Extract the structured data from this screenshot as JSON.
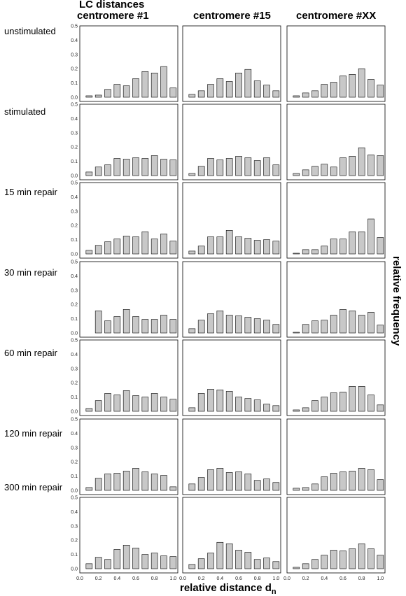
{
  "figure": {
    "header_top": "LC distances",
    "columns": [
      "centromere #1",
      "centromere #15",
      "centromere #XX"
    ],
    "rows": [
      "unstimulated",
      "stimulated",
      "15 min repair",
      "30 min repair",
      "60 min repair",
      "120 min repair",
      "300 min repair"
    ],
    "xlabel_main": "relative distance d",
    "xlabel_sub": "n",
    "ylabel": "relative frequency",
    "bar_color": "#c8c8c8"
  },
  "chart_data": {
    "type": "bar",
    "x": [
      0.1,
      0.2,
      0.3,
      0.4,
      0.5,
      0.6,
      0.7,
      0.8,
      0.9,
      1.0
    ],
    "xlim": [
      0.0,
      1.05
    ],
    "ylim": [
      0,
      0.5
    ],
    "x_ticks": [
      "0.0",
      "0.2",
      "0.4",
      "0.6",
      "0.8",
      "1.0"
    ],
    "y_ticks": [
      "0.0",
      "0.1",
      "0.2",
      "0.3",
      "0.4",
      "0.5"
    ],
    "panels": [
      [
        [
          0.01,
          0.015,
          0.055,
          0.09,
          0.08,
          0.13,
          0.18,
          0.17,
          0.215,
          0.065
        ],
        [
          0.02,
          0.045,
          0.09,
          0.13,
          0.11,
          0.17,
          0.195,
          0.115,
          0.085,
          0.045
        ],
        [
          0.01,
          0.03,
          0.045,
          0.09,
          0.105,
          0.15,
          0.16,
          0.2,
          0.125,
          0.085
        ]
      ],
      [
        [
          0.025,
          0.06,
          0.075,
          0.12,
          0.115,
          0.125,
          0.12,
          0.14,
          0.115,
          0.11
        ],
        [
          0.015,
          0.065,
          0.12,
          0.11,
          0.12,
          0.135,
          0.125,
          0.105,
          0.125,
          0.075
        ],
        [
          0.015,
          0.04,
          0.065,
          0.08,
          0.06,
          0.125,
          0.135,
          0.195,
          0.145,
          0.14
        ]
      ],
      [
        [
          0.025,
          0.06,
          0.085,
          0.105,
          0.125,
          0.12,
          0.155,
          0.105,
          0.14,
          0.09
        ],
        [
          0.02,
          0.055,
          0.12,
          0.12,
          0.165,
          0.12,
          0.11,
          0.095,
          0.1,
          0.09
        ],
        [
          0.005,
          0.03,
          0.03,
          0.055,
          0.105,
          0.105,
          0.155,
          0.155,
          0.245,
          0.115
        ]
      ],
      [
        [
          0.0,
          0.155,
          0.085,
          0.115,
          0.165,
          0.115,
          0.095,
          0.095,
          0.125,
          0.095
        ],
        [
          0.03,
          0.09,
          0.135,
          0.155,
          0.125,
          0.12,
          0.11,
          0.1,
          0.09,
          0.06
        ],
        [
          0.005,
          0.06,
          0.085,
          0.09,
          0.125,
          0.165,
          0.155,
          0.125,
          0.145,
          0.055
        ]
      ],
      [
        [
          0.02,
          0.075,
          0.125,
          0.115,
          0.145,
          0.11,
          0.1,
          0.125,
          0.1,
          0.085
        ],
        [
          0.025,
          0.125,
          0.155,
          0.15,
          0.14,
          0.1,
          0.09,
          0.08,
          0.05,
          0.04
        ],
        [
          0.01,
          0.025,
          0.075,
          0.1,
          0.13,
          0.135,
          0.175,
          0.175,
          0.115,
          0.045
        ]
      ],
      [
        [
          0.02,
          0.085,
          0.115,
          0.12,
          0.135,
          0.155,
          0.13,
          0.115,
          0.105,
          0.025
        ],
        [
          0.045,
          0.09,
          0.145,
          0.155,
          0.125,
          0.13,
          0.115,
          0.07,
          0.08,
          0.055
        ],
        [
          0.015,
          0.02,
          0.045,
          0.095,
          0.12,
          0.13,
          0.135,
          0.155,
          0.145,
          0.075
        ]
      ],
      [
        [
          0.035,
          0.08,
          0.065,
          0.135,
          0.165,
          0.145,
          0.1,
          0.11,
          0.09,
          0.085
        ],
        [
          0.03,
          0.07,
          0.11,
          0.185,
          0.175,
          0.13,
          0.115,
          0.065,
          0.075,
          0.05
        ],
        [
          0.01,
          0.035,
          0.065,
          0.095,
          0.13,
          0.125,
          0.14,
          0.175,
          0.14,
          0.095
        ]
      ]
    ]
  }
}
